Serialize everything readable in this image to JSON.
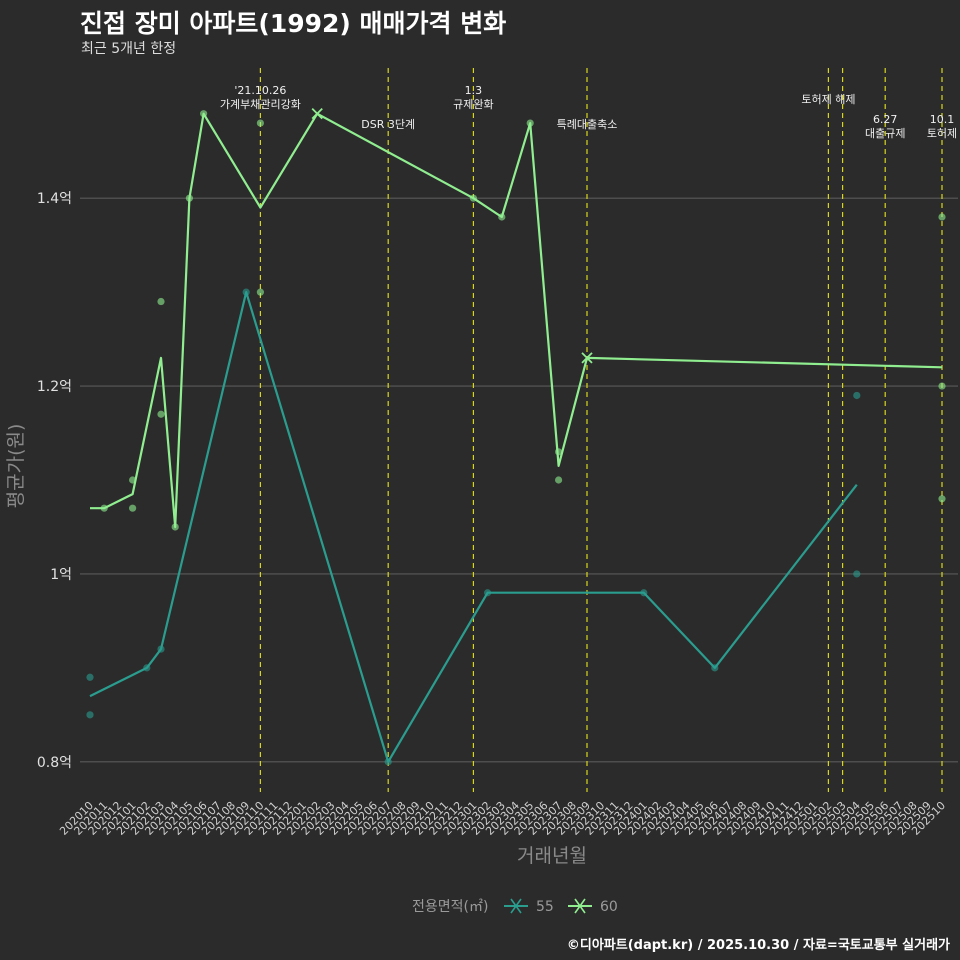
{
  "header": {
    "title": "진접 장미 아파트(1992) 매매가격 변화",
    "subtitle": "최근 5개년 한정"
  },
  "caption": "©디아파트(dapt.kr) / 2025.10.30 / 자료=국토교통부 실거래가",
  "chart_data": {
    "type": "line",
    "xlabel": "거래년월",
    "ylabel": "평균가(원)",
    "ylim": [
      0.77,
      1.545
    ],
    "y_ticks": [
      {
        "value": 0.8,
        "label": "0.8억"
      },
      {
        "value": 1.0,
        "label": "1억"
      },
      {
        "value": 1.2,
        "label": "1.2억"
      },
      {
        "value": 1.4,
        "label": "1.4억"
      }
    ],
    "grid": true,
    "categories": [
      "202010",
      "202011",
      "202012",
      "202101",
      "202102",
      "202103",
      "202104",
      "202105",
      "202106",
      "202107",
      "202108",
      "202109",
      "202110",
      "202111",
      "202112",
      "202201",
      "202202",
      "202203",
      "202204",
      "202205",
      "202206",
      "202207",
      "202208",
      "202209",
      "202210",
      "202211",
      "202212",
      "202301",
      "202302",
      "202303",
      "202304",
      "202305",
      "202306",
      "202307",
      "202308",
      "202309",
      "202310",
      "202311",
      "202312",
      "202401",
      "202402",
      "202403",
      "202404",
      "202405",
      "202406",
      "202407",
      "202408",
      "202409",
      "202410",
      "202411",
      "202412",
      "202501",
      "202502",
      "202503",
      "202504",
      "202505",
      "202506",
      "202507",
      "202508",
      "202509",
      "202510"
    ],
    "legend_title": "전용면적(㎡)",
    "series": [
      {
        "name": "55",
        "color": "#2a9d8f",
        "line": [
          [
            "202010",
            0.87
          ],
          [
            "202102",
            0.9
          ],
          [
            "202103",
            0.92
          ],
          [
            "202109",
            1.3
          ],
          [
            "202207",
            0.8
          ],
          [
            "202302",
            0.98
          ],
          [
            "202401",
            0.98
          ],
          [
            "202406",
            0.9
          ],
          [
            "202504",
            1.095
          ]
        ],
        "points": [
          [
            "202010",
            0.89
          ],
          [
            "202010",
            0.85
          ],
          [
            "202102",
            0.9
          ],
          [
            "202103",
            0.92
          ],
          [
            "202109",
            1.3
          ],
          [
            "202207",
            0.8
          ],
          [
            "202302",
            0.98
          ],
          [
            "202401",
            0.98
          ],
          [
            "202406",
            0.9
          ],
          [
            "202504",
            1.19
          ],
          [
            "202504",
            1.0
          ]
        ],
        "cross_markers": []
      },
      {
        "name": "60",
        "color": "#90ee90",
        "line": [
          [
            "202010",
            1.07
          ],
          [
            "202011",
            1.07
          ],
          [
            "202101",
            1.085
          ],
          [
            "202103",
            1.23
          ],
          [
            "202104",
            1.05
          ],
          [
            "202105",
            1.4
          ],
          [
            "202106",
            1.49
          ],
          [
            "202110",
            1.39
          ],
          [
            "202202",
            1.49
          ],
          [
            "202301",
            1.4
          ],
          [
            "202303",
            1.38
          ],
          [
            "202305",
            1.48
          ],
          [
            "202307",
            1.115
          ],
          [
            "202309",
            1.23
          ],
          [
            "202510",
            1.22
          ]
        ],
        "points": [
          [
            "202011",
            1.07
          ],
          [
            "202101",
            1.1
          ],
          [
            "202101",
            1.07
          ],
          [
            "202103",
            1.29
          ],
          [
            "202103",
            1.17
          ],
          [
            "202104",
            1.05
          ],
          [
            "202105",
            1.4
          ],
          [
            "202106",
            1.49
          ],
          [
            "202110",
            1.48
          ],
          [
            "202110",
            1.3
          ],
          [
            "202301",
            1.4
          ],
          [
            "202303",
            1.38
          ],
          [
            "202305",
            1.48
          ],
          [
            "202307",
            1.13
          ],
          [
            "202307",
            1.1
          ],
          [
            "202510",
            1.38
          ],
          [
            "202510",
            1.2
          ],
          [
            "202510",
            1.08
          ]
        ],
        "cross_markers": [
          [
            "202202",
            1.49
          ],
          [
            "202309",
            1.23
          ]
        ]
      }
    ],
    "events": [
      {
        "month": "202110",
        "lines": [
          "'21.10.26",
          "가계부채관리강화"
        ],
        "level": 0
      },
      {
        "month": "202207",
        "lines": [
          "DSR 3단계"
        ],
        "level": 2
      },
      {
        "month": "202301",
        "lines": [
          "1.3",
          "규제완화"
        ],
        "level": 0
      },
      {
        "month": "202309",
        "lines": [
          "특례대출축소"
        ],
        "level": 2
      },
      {
        "month": "202502",
        "lines": [
          "토허제 해제"
        ],
        "level": 1
      },
      {
        "month": "202503",
        "lines": [],
        "level": 1
      },
      {
        "month": "202506",
        "lines": [
          "6.27",
          "대출규제"
        ],
        "level": 3
      },
      {
        "month": "202510",
        "lines": [
          "10.1",
          "토허제"
        ],
        "level": 3
      }
    ]
  }
}
